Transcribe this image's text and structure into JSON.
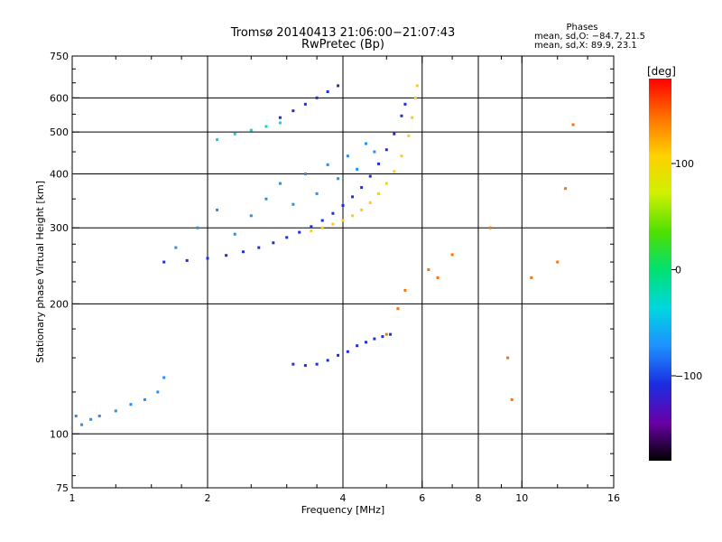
{
  "chart_data": {
    "type": "scatter",
    "title": "Tromsø 20140413 21:06:00−21:07:43",
    "subtitle": "RwPretec (Bp)",
    "xlabel": "Frequency [MHz]",
    "ylabel": "Stationary phase Virtual Height [km]",
    "x_scale": "log",
    "y_scale": "log",
    "xlim": [
      1,
      16
    ],
    "ylim": [
      75,
      750
    ],
    "x_ticks": [
      1,
      2,
      4,
      6,
      8,
      10,
      16
    ],
    "y_ticks": [
      75,
      100,
      200,
      300,
      400,
      500,
      600,
      750
    ],
    "x_minor_ticks": [
      1.25,
      1.5,
      1.75,
      2.5,
      3,
      3.5,
      5,
      7,
      9,
      12,
      14
    ],
    "y_minor_ticks": [
      80,
      90,
      125,
      150,
      175,
      225,
      250,
      275,
      350,
      450,
      550,
      650,
      700
    ],
    "grid_x": [
      2,
      4,
      6,
      8,
      10
    ],
    "grid_y": [
      100,
      200,
      300,
      400,
      500,
      600
    ],
    "legend": {
      "title": "Phases",
      "lines": [
        "mean, sd,O: −84.7, 21.5",
        "mean, sd,X:  89.9, 23.1"
      ],
      "position": "top-right"
    },
    "colorbar": {
      "label": "[deg]",
      "range": [
        -180,
        180
      ],
      "ticks": [
        {
          "value": 100,
          "label": "100"
        },
        {
          "value": 0,
          "label": "0"
        },
        {
          "value": -100,
          "label": "−100"
        }
      ],
      "colors": [
        "#000000",
        "#6a00a8",
        "#1b2de0",
        "#1e90ff",
        "#00d7e0",
        "#00e070",
        "#50e000",
        "#d0f000",
        "#ffd000",
        "#ff7000",
        "#ff0000"
      ]
    },
    "series": [
      {
        "description_key": "O-trace F2",
        "color_phase": -100,
        "points": [
          [
            1.6,
            250
          ],
          [
            1.8,
            252
          ],
          [
            2.0,
            255
          ],
          [
            2.2,
            259
          ],
          [
            2.4,
            264
          ],
          [
            2.6,
            270
          ],
          [
            2.8,
            277
          ],
          [
            3.0,
            285
          ],
          [
            3.2,
            293
          ],
          [
            3.4,
            302
          ],
          [
            3.6,
            312
          ],
          [
            3.8,
            324
          ],
          [
            4.0,
            338
          ],
          [
            4.2,
            354
          ],
          [
            4.4,
            372
          ],
          [
            4.6,
            395
          ],
          [
            4.8,
            422
          ],
          [
            5.0,
            455
          ],
          [
            5.2,
            495
          ],
          [
            5.4,
            545
          ],
          [
            5.5,
            580
          ]
        ]
      },
      {
        "description_key": "X-trace F2",
        "color_phase": 100,
        "points": [
          [
            3.4,
            295
          ],
          [
            3.6,
            300
          ],
          [
            3.8,
            306
          ],
          [
            4.0,
            312
          ],
          [
            4.2,
            320
          ],
          [
            4.4,
            330
          ],
          [
            4.6,
            343
          ],
          [
            4.8,
            360
          ],
          [
            5.0,
            380
          ],
          [
            5.2,
            405
          ],
          [
            5.4,
            440
          ],
          [
            5.6,
            490
          ],
          [
            5.7,
            540
          ],
          [
            5.8,
            600
          ],
          [
            5.85,
            640
          ]
        ]
      },
      {
        "description_key": "spread F scatter",
        "color_phase": -60,
        "points": [
          [
            1.7,
            270
          ],
          [
            1.9,
            300
          ],
          [
            2.1,
            330
          ],
          [
            2.3,
            290
          ],
          [
            2.5,
            320
          ],
          [
            2.7,
            350
          ],
          [
            2.9,
            380
          ],
          [
            3.1,
            340
          ],
          [
            3.3,
            400
          ],
          [
            3.5,
            360
          ],
          [
            3.7,
            420
          ],
          [
            3.9,
            390
          ],
          [
            4.1,
            440
          ],
          [
            4.3,
            410
          ],
          [
            4.5,
            470
          ],
          [
            4.7,
            450
          ]
        ]
      },
      {
        "description_key": "multi-hop trace",
        "color_phase": -110,
        "points": [
          [
            2.9,
            540
          ],
          [
            3.1,
            560
          ],
          [
            3.3,
            580
          ],
          [
            3.5,
            600
          ],
          [
            3.7,
            620
          ],
          [
            3.9,
            640
          ]
        ]
      },
      {
        "description_key": "upper trace",
        "color_phase": -40,
        "points": [
          [
            2.1,
            480
          ],
          [
            2.3,
            495
          ],
          [
            2.5,
            505
          ],
          [
            2.7,
            515
          ],
          [
            2.9,
            525
          ]
        ]
      },
      {
        "description_key": "E layer trace",
        "color_phase": -110,
        "points": [
          [
            3.1,
            145
          ],
          [
            3.3,
            144
          ],
          [
            3.5,
            145
          ],
          [
            3.7,
            148
          ],
          [
            3.9,
            152
          ],
          [
            4.1,
            155
          ],
          [
            4.3,
            160
          ],
          [
            4.5,
            163
          ],
          [
            4.7,
            166
          ],
          [
            4.9,
            168
          ],
          [
            5.1,
            170
          ]
        ]
      },
      {
        "description_key": "low frequency echoes",
        "color_phase": -60,
        "points": [
          [
            1.02,
            110
          ],
          [
            1.05,
            105
          ],
          [
            1.1,
            108
          ],
          [
            1.15,
            110
          ],
          [
            1.25,
            113
          ],
          [
            1.35,
            117
          ],
          [
            1.45,
            120
          ],
          [
            1.55,
            125
          ],
          [
            1.6,
            135
          ]
        ]
      },
      {
        "description_key": "sporadic",
        "color_phase": 130,
        "points": [
          [
            5.0,
            170
          ],
          [
            5.3,
            195
          ],
          [
            5.5,
            215
          ],
          [
            6.2,
            240
          ],
          [
            6.5,
            230
          ],
          [
            7.0,
            260
          ],
          [
            8.5,
            300
          ],
          [
            9.3,
            150
          ],
          [
            9.5,
            120
          ],
          [
            10.5,
            230
          ],
          [
            12.0,
            250
          ],
          [
            12.5,
            370
          ],
          [
            13.0,
            520
          ]
        ]
      }
    ]
  }
}
